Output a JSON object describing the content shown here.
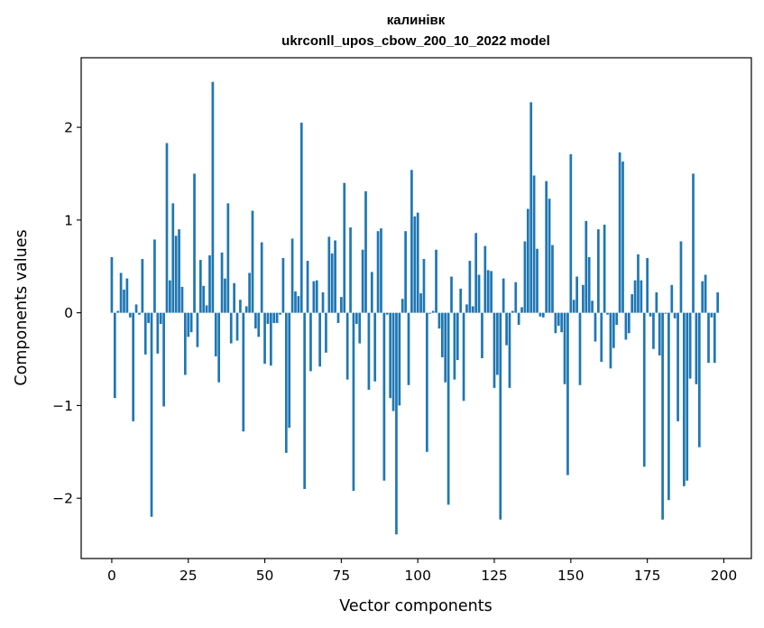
{
  "chart_data": {
    "type": "bar",
    "title_line1": "калинівк",
    "title_line2": "ukrconll_upos_cbow_200_10_2022 model",
    "xlabel": "Vector components",
    "ylabel": "Components values",
    "xlim": [
      -10,
      209
    ],
    "ylim": [
      -2.65,
      2.75
    ],
    "xticks": [
      0,
      25,
      50,
      75,
      100,
      125,
      150,
      175,
      200
    ],
    "xtick_labels": [
      "0",
      "25",
      "50",
      "75",
      "100",
      "125",
      "150",
      "175",
      "200"
    ],
    "yticks": [
      -2,
      -1,
      0,
      1,
      2
    ],
    "ytick_labels": [
      "−2",
      "−1",
      "0",
      "1",
      "2"
    ],
    "bar_color": "#1f77b4",
    "values": [
      0.6,
      -0.92,
      0.02,
      0.43,
      0.25,
      0.37,
      -0.05,
      -1.17,
      0.09,
      -0.02,
      0.58,
      -0.45,
      -0.11,
      -2.2,
      0.79,
      -0.44,
      -0.12,
      -1.01,
      1.83,
      0.35,
      1.18,
      0.83,
      0.9,
      0.28,
      -0.67,
      -0.26,
      -0.21,
      1.5,
      -0.37,
      0.57,
      0.29,
      0.08,
      0.62,
      2.49,
      -0.47,
      -0.75,
      0.65,
      0.37,
      1.18,
      -0.33,
      0.32,
      -0.3,
      0.14,
      -1.28,
      0.07,
      0.43,
      1.1,
      -0.17,
      -0.26,
      0.76,
      -0.55,
      -0.12,
      -0.57,
      -0.11,
      -0.11,
      -0.02,
      0.59,
      -1.51,
      -1.24,
      0.8,
      0.23,
      0.18,
      2.05,
      -1.9,
      0.56,
      -0.63,
      0.34,
      0.35,
      -0.58,
      0.22,
      -0.43,
      0.82,
      0.64,
      0.78,
      -0.11,
      0.17,
      1.4,
      -0.72,
      0.92,
      -1.92,
      -0.12,
      -0.33,
      0.68,
      1.31,
      -0.83,
      0.44,
      -0.74,
      0.88,
      0.91,
      -1.81,
      -0.02,
      -0.92,
      -1.06,
      -2.39,
      -1.0,
      0.15,
      0.88,
      -0.78,
      1.54,
      1.04,
      1.08,
      0.21,
      0.58,
      -1.5,
      -0.01,
      0.02,
      0.68,
      -0.17,
      -0.48,
      -0.75,
      -2.07,
      0.39,
      -0.72,
      -0.51,
      0.26,
      -0.95,
      0.09,
      0.56,
      0.07,
      0.86,
      0.41,
      -0.49,
      0.72,
      0.46,
      0.45,
      -0.81,
      -0.67,
      -2.23,
      0.37,
      -0.35,
      -0.81,
      0.02,
      0.33,
      -0.13,
      0.06,
      0.77,
      1.12,
      2.27,
      1.48,
      0.69,
      -0.04,
      -0.05,
      1.42,
      1.23,
      0.73,
      -0.22,
      -0.14,
      -0.21,
      -0.77,
      -1.75,
      1.71,
      0.14,
      0.39,
      -0.78,
      0.3,
      0.99,
      0.6,
      0.13,
      -0.31,
      0.9,
      -0.53,
      0.95,
      -0.02,
      -0.6,
      -0.38,
      -0.13,
      1.73,
      1.63,
      -0.29,
      -0.22,
      0.2,
      0.35,
      0.63,
      0.35,
      -1.66,
      0.59,
      -0.04,
      -0.39,
      0.22,
      -0.46,
      -2.23,
      -0.01,
      -2.02,
      0.3,
      -0.06,
      -1.17,
      0.77,
      -1.87,
      -1.81,
      -0.71,
      1.5,
      -0.77,
      -1.45,
      0.34,
      0.41,
      -0.54,
      -0.05,
      -0.54,
      0.22
    ]
  }
}
